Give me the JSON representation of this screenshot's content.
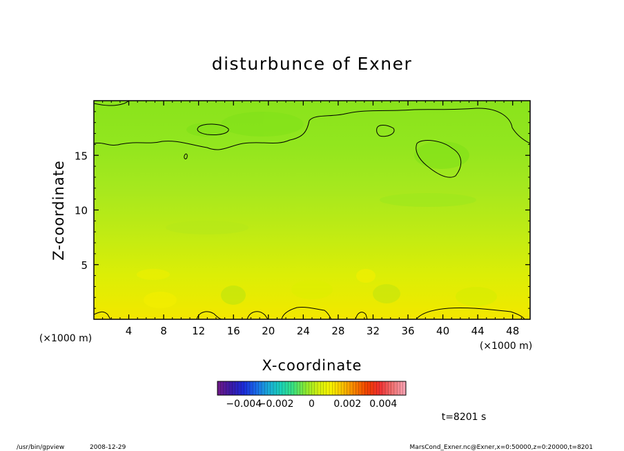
{
  "chart_data": {
    "type": "heatmap",
    "title": "disturbunce of Exner",
    "xlabel": "X-coordinate",
    "ylabel": "Z-coordinate",
    "x_unit": "(×1000 m)",
    "xlim": [
      0,
      50
    ],
    "ylim": [
      0,
      20
    ],
    "x_ticks": [
      4,
      8,
      12,
      16,
      20,
      24,
      28,
      32,
      36,
      40,
      44,
      48
    ],
    "y_ticks": [
      5,
      10,
      15
    ],
    "colorbar": {
      "range": [
        -0.005,
        0.005
      ],
      "tick_values": [
        -0.004,
        -0.002,
        0,
        0.002,
        0.004
      ],
      "tick_labels": [
        "−0.004",
        "−0.002",
        "0",
        "0.002",
        "0.004"
      ],
      "colors": [
        "#6a1a8a",
        "#3a1aa8",
        "#1a2ad8",
        "#1a6ae8",
        "#1aaad8",
        "#1ad0b8",
        "#3ae080",
        "#8ae830",
        "#d0f010",
        "#f8f400",
        "#f8c000",
        "#f88000",
        "#f04000",
        "#f03030",
        "#f07070",
        "#f8a0b0"
      ]
    },
    "field_zones": [
      {
        "z_range": [
          0,
          1
        ],
        "value": 0.002,
        "color": "#f6e400"
      },
      {
        "z_range": [
          1,
          4
        ],
        "value": 0.0015,
        "color": "#e4ec00"
      },
      {
        "z_range": [
          4,
          8
        ],
        "value": 0.001,
        "color": "#c8ec10"
      },
      {
        "z_range": [
          8,
          15
        ],
        "value": 0.0005,
        "color": "#a4e820"
      },
      {
        "z_range": [
          15,
          20
        ],
        "value": 0.0002,
        "color": "#88e61c"
      }
    ],
    "contour_level": 0
  },
  "footer": {
    "time_label": "t=8201 s",
    "program": "/usr/bin/gpview",
    "date": "2008-12-29",
    "source": "MarsCond_Exner.nc@Exner,x=0:50000,z=0:20000,t=8201"
  }
}
